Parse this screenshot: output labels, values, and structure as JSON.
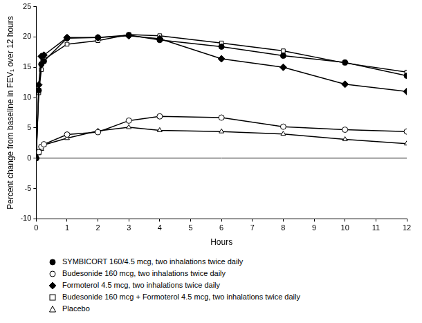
{
  "chart_data": {
    "type": "line",
    "x_label": "Hours",
    "y_label": "Percent change from baseline in FEV₁ over 12 hours",
    "x": [
      0,
      0.083,
      0.167,
      0.25,
      1,
      2,
      3,
      4,
      6,
      8,
      10,
      12
    ],
    "xlim": [
      0,
      12
    ],
    "xticks": [
      0,
      1,
      2,
      3,
      4,
      5,
      6,
      7,
      8,
      9,
      10,
      11,
      12
    ],
    "ylim": [
      -10,
      25
    ],
    "yticks": [
      -10,
      -5,
      0,
      5,
      10,
      15,
      20,
      25
    ],
    "grid": false,
    "legend": "bottom",
    "series": [
      {
        "name": "SYMBICORT 160/4.5 mcg, two inhalations twice daily",
        "color": "#000000",
        "marker": "circle",
        "values": [
          0,
          11.2,
          15.5,
          16.0,
          19.8,
          19.9,
          20.3,
          19.5,
          18.4,
          16.9,
          15.8,
          13.6
        ]
      },
      {
        "name": "Budesonide 160 mcg, two inhalations twice daily",
        "color": "#000000",
        "marker": "open circle",
        "values": [
          0,
          1.0,
          1.9,
          2.3,
          3.9,
          4.3,
          6.2,
          6.9,
          6.7,
          5.2,
          4.7,
          4.4
        ]
      },
      {
        "name": "Formoterol 4.5 mcg, two inhalations twice daily",
        "color": "#000000",
        "marker": "diamond",
        "values": [
          0,
          12.1,
          16.8,
          17.0,
          19.9,
          19.9,
          20.2,
          19.7,
          16.4,
          15.0,
          12.2,
          11.0
        ]
      },
      {
        "name": "Budesonide 160 mcg + Formoterol 4.5 mcg, two inhalations twice daily",
        "color": "#000000",
        "marker": "open square",
        "values": [
          0,
          10.8,
          14.6,
          16.3,
          18.8,
          19.4,
          20.4,
          20.2,
          19.0,
          17.7,
          15.7,
          14.2
        ]
      },
      {
        "name": "Placebo",
        "color": "#000000",
        "marker": "open triangle",
        "values": [
          0,
          0.8,
          1.5,
          2.2,
          3.3,
          4.5,
          5.1,
          4.6,
          4.4,
          4.0,
          3.1,
          2.4
        ]
      }
    ]
  }
}
